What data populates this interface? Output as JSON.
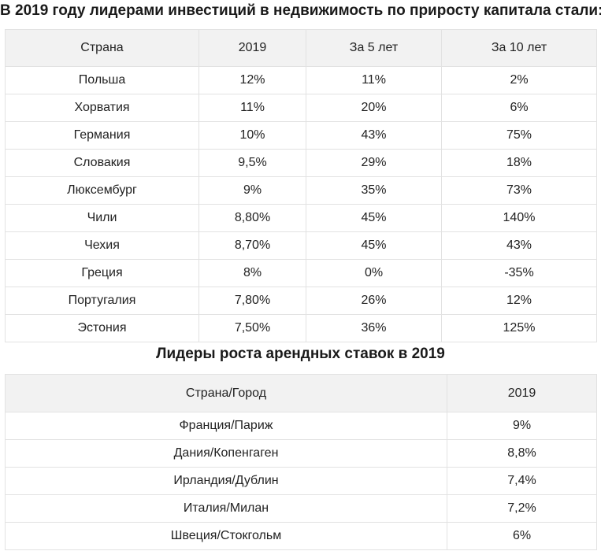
{
  "capital_growth": {
    "heading": "В 2019 году лидерами инвестиций в недвижимость по приросту капитала стали:",
    "columns": [
      "Страна",
      "2019",
      "За 5 лет",
      "За 10 лет"
    ],
    "rows": [
      [
        "Польша",
        "12%",
        "11%",
        "2%"
      ],
      [
        "Хорватия",
        "11%",
        "20%",
        "6%"
      ],
      [
        "Германия",
        "10%",
        "43%",
        "75%"
      ],
      [
        "Словакия",
        "9,5%",
        "29%",
        "18%"
      ],
      [
        "Люксембург",
        "9%",
        "35%",
        "73%"
      ],
      [
        "Чили",
        "8,80%",
        "45%",
        "140%"
      ],
      [
        "Чехия",
        "8,70%",
        "45%",
        "43%"
      ],
      [
        "Греция",
        "8%",
        "0%",
        "-35%"
      ],
      [
        "Португалия",
        "7,80%",
        "26%",
        "12%"
      ],
      [
        "Эстония",
        "7,50%",
        "36%",
        "125%"
      ]
    ]
  },
  "rent_growth": {
    "heading": "Лидеры роста арендных ставок в 2019",
    "columns": [
      "Страна/Город",
      "2019"
    ],
    "rows": [
      [
        "Франция/Париж",
        "9%"
      ],
      [
        "Дания/Копенгаген",
        "8,8%"
      ],
      [
        "Ирландия/Дублин",
        "7,4%"
      ],
      [
        "Италия/Милан",
        "7,2%"
      ],
      [
        "Швеция/Стокгольм",
        "6%"
      ]
    ]
  }
}
